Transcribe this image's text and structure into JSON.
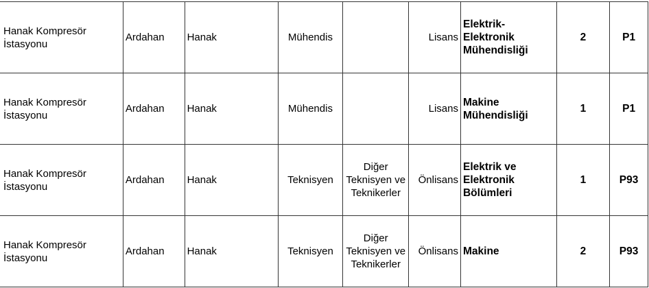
{
  "rows": [
    {
      "unit": "Hanak Kompresör İstasyonu",
      "province": "Ardahan",
      "district": "Hanak",
      "title": "Mühendis",
      "group": "",
      "education": "Lisans",
      "department": "Elektrik-Elektronik Mühendisliği",
      "count": "2",
      "code": "P1"
    },
    {
      "unit": "Hanak Kompresör İstasyonu",
      "province": "Ardahan",
      "district": "Hanak",
      "title": "Mühendis",
      "group": "",
      "education": "Lisans",
      "department": "Makine Mühendisliği",
      "count": "1",
      "code": "P1"
    },
    {
      "unit": "Hanak Kompresör İstasyonu",
      "province": "Ardahan",
      "district": "Hanak",
      "title": "Teknisyen",
      "group": "Diğer Teknisyen ve Teknikerler",
      "education": "Önlisans",
      "department": "Elektrik ve Elektronik Bölümleri",
      "count": "1",
      "code": "P93"
    },
    {
      "unit": "Hanak Kompresör İstasyonu",
      "province": "Ardahan",
      "district": "Hanak",
      "title": "Teknisyen",
      "group": "Diğer Teknisyen ve Teknikerler",
      "education": "Önlisans",
      "department": "Makine",
      "count": "2",
      "code": "P93"
    }
  ]
}
